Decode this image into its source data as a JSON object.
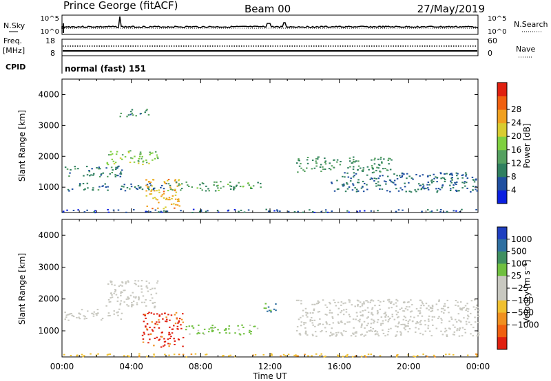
{
  "header": {
    "station": "Prince George (fitACF)",
    "beam": "Beam 00",
    "date": "27/May/2019"
  },
  "noise_panel": {
    "left_label": "N.Sky",
    "right_label": "N.Search",
    "left_ticks": [
      "10^5",
      "10^0"
    ],
    "right_ticks": [
      "10^5",
      "10^0"
    ]
  },
  "freq_panel": {
    "left_label_1": "Freq.",
    "left_label_2": "[MHz]",
    "left_ticks": [
      "18",
      "8"
    ],
    "right_ticks": [
      "60",
      "0"
    ],
    "right_label": "Nave"
  },
  "cpid_panel": {
    "label": "CPID",
    "text": "normal (fast) 151"
  },
  "axes": {
    "ylabel": "Slant Range [km]",
    "yticks": [
      "1000",
      "2000",
      "3000",
      "4000"
    ],
    "xticks": [
      "00:00",
      "04:00",
      "08:00",
      "12:00",
      "16:00",
      "20:00",
      "00:00"
    ],
    "xlabel": "Time UT"
  },
  "power_colorbar": {
    "label": "Power [dB]",
    "ticks": [
      "4",
      "8",
      "12",
      "16",
      "20",
      "24",
      "28"
    ],
    "colors": [
      "#0a1fe0",
      "#1f4fa0",
      "#2f7f5f",
      "#55a060",
      "#7fd040",
      "#d8cc30",
      "#f0a020",
      "#f06010",
      "#e02010"
    ]
  },
  "velocity_colorbar": {
    "label": "Velocity [m s⁻¹]",
    "ticks": [
      "1000",
      "500",
      "100",
      "25",
      "−25",
      "−100",
      "−500",
      "−1000"
    ],
    "colors": [
      "#1f3fc0",
      "#2f6fa0",
      "#3f8f60",
      "#70c040",
      "#c8c8c0",
      "#c8c8c0",
      "#f0c030",
      "#f09020",
      "#f06010",
      "#e02010"
    ]
  },
  "chart_data": [
    {
      "type": "heatmap",
      "title": "Power",
      "ylabel": "Slant Range [km]",
      "xlabel": "Time UT",
      "x_range_hours": [
        0,
        24
      ],
      "ylim": [
        180,
        4500
      ],
      "colorbar_ticks_db": [
        4,
        8,
        12,
        16,
        20,
        24,
        28
      ],
      "echo_regions": [
        {
          "t_start": 0.0,
          "t_end": 24.0,
          "r_min": 200,
          "r_max": 300,
          "db": 6
        },
        {
          "t_start": 0.0,
          "t_end": 3.5,
          "r_min": 1350,
          "r_max": 1700,
          "db": 10
        },
        {
          "t_start": 0.3,
          "t_end": 6.0,
          "r_min": 900,
          "r_max": 1150,
          "db": 9
        },
        {
          "t_start": 2.5,
          "t_end": 5.5,
          "r_min": 1750,
          "r_max": 2200,
          "db": 18
        },
        {
          "t_start": 3.3,
          "t_end": 5.0,
          "r_min": 3300,
          "r_max": 3550,
          "db": 11
        },
        {
          "t_start": 4.8,
          "t_end": 6.8,
          "r_min": 300,
          "r_max": 1300,
          "db": 25
        },
        {
          "t_start": 6.0,
          "t_end": 11.5,
          "r_min": 900,
          "r_max": 1200,
          "db": 13
        },
        {
          "t_start": 13.5,
          "t_end": 19.0,
          "r_min": 1500,
          "r_max": 2000,
          "db": 12
        },
        {
          "t_start": 15.5,
          "t_end": 24.0,
          "r_min": 850,
          "r_max": 1500,
          "db": 8
        }
      ]
    },
    {
      "type": "heatmap",
      "title": "Velocity",
      "ylabel": "Slant Range [km]",
      "xlabel": "Time UT",
      "x_range_hours": [
        0,
        24
      ],
      "ylim": [
        180,
        4500
      ],
      "colorbar_ticks_ms": [
        1000,
        500,
        100,
        25,
        -25,
        -100,
        -500,
        -1000
      ],
      "echo_regions": [
        {
          "t_start": 0.0,
          "t_end": 24.0,
          "r_min": 200,
          "r_max": 300,
          "velocity": -80
        },
        {
          "t_start": 0.0,
          "t_end": 3.5,
          "r_min": 1350,
          "r_max": 1700,
          "velocity": 0
        },
        {
          "t_start": 2.5,
          "t_end": 5.5,
          "r_min": 1750,
          "r_max": 2600,
          "velocity": 0
        },
        {
          "t_start": 4.6,
          "t_end": 7.0,
          "r_min": 500,
          "r_max": 1600,
          "velocity": -700
        },
        {
          "t_start": 7.0,
          "t_end": 11.3,
          "r_min": 900,
          "r_max": 1200,
          "velocity": 150
        },
        {
          "t_start": 11.6,
          "t_end": 12.3,
          "r_min": 1500,
          "r_max": 1900,
          "velocity": 600
        },
        {
          "t_start": 13.5,
          "t_end": 24.0,
          "r_min": 850,
          "r_max": 2000,
          "velocity": 0
        }
      ]
    }
  ]
}
